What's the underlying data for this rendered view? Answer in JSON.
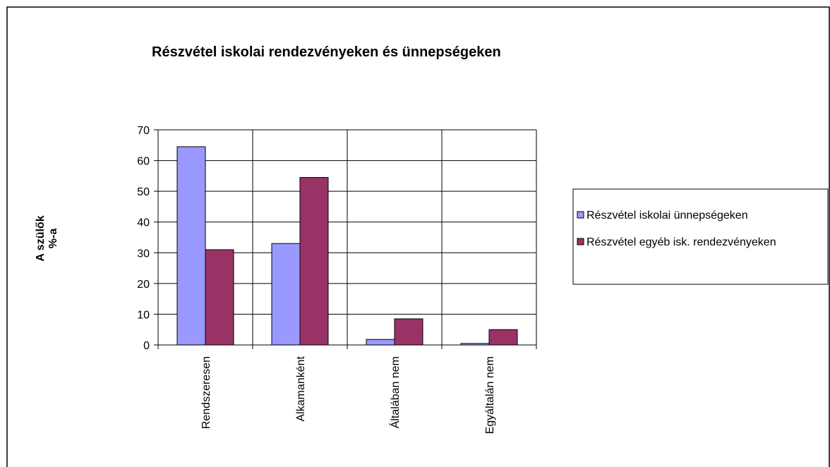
{
  "chart_data": {
    "type": "bar",
    "title": "Részvétel iskolai rendezvényeken  és ünnepségeken",
    "ylabel": [
      "A szülők",
      "%-a"
    ],
    "categories": [
      "Rendszeresen",
      "Alkamanként",
      "Általában nem",
      "Egyáltalán nem"
    ],
    "series": [
      {
        "name": "Részvétel iskolai ünnepségeken",
        "color": "#9999ff",
        "values": [
          64.5,
          33,
          1.8,
          0.5
        ]
      },
      {
        "name": "Részvétel egyéb isk. rendezvényeken",
        "color": "#993366",
        "values": [
          31,
          54.5,
          8.5,
          5
        ]
      }
    ],
    "ylim": [
      0,
      70
    ],
    "yticks": [
      0,
      10,
      20,
      30,
      40,
      50,
      60,
      70
    ],
    "grid": true,
    "legend": "right"
  }
}
